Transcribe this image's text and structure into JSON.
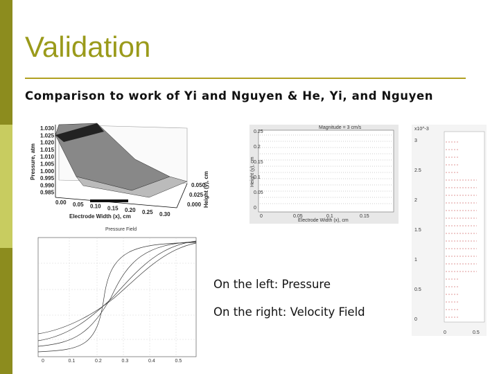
{
  "header": {
    "title": "Validation",
    "subtitle": "Comparison to work of Yi and Nguyen & He, Yi, and Nguyen"
  },
  "figures": {
    "pressure_3d": {
      "z_label": "Pressure, atm",
      "z_ticks": [
        "1.030",
        "1.025",
        "1.020",
        "1.015",
        "1.010",
        "1.005",
        "1.000",
        "0.995",
        "0.990",
        "0.985"
      ],
      "x_label": "Electrode Width (x), cm",
      "x_ticks": [
        "0.00",
        "0.05",
        "0.10",
        "0.15",
        "0.20",
        "0.25",
        "0.30"
      ],
      "y_label": "Height (y), cm",
      "y_ticks": [
        "0.050",
        "0.025",
        "0.000"
      ]
    },
    "velocity_2d": {
      "title": "Magnitude = 3 cm/s",
      "x_label": "Electrode Width (x), cm",
      "y_label": "Height (y), cm",
      "x_ticks": [
        "0",
        "0.05",
        "0.1",
        "0.15"
      ],
      "y_ticks": [
        "0.25",
        "0.2",
        "0.15",
        "0.1",
        "0.05",
        "0"
      ]
    },
    "pressure_2d": {
      "title": "Pressure Field",
      "x_ticks": [
        "0",
        "0.1",
        "0.2",
        "0.3",
        "0.4",
        "0.5"
      ]
    },
    "velocity_field": {
      "scale": "x10^-3",
      "y_ticks": [
        "3",
        "2.5",
        "2",
        "1.5",
        "1",
        "0.5",
        "0"
      ],
      "x_ticks": [
        "0",
        "0.5"
      ]
    }
  },
  "captions": [
    "On the left: Pressure",
    "On the right: Velocity Field"
  ]
}
